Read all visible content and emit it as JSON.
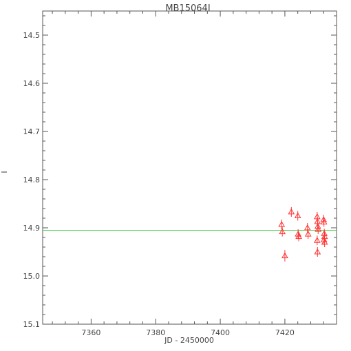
{
  "chart_data": {
    "type": "scatter",
    "title": "MB15064I",
    "xlabel": "JD - 2450000",
    "ylabel": "I",
    "xlim": [
      7345,
      7436
    ],
    "ylim": [
      15.1,
      14.45
    ],
    "y_inverted": true,
    "grid": false,
    "xticks": [
      7360,
      7380,
      7400,
      7420
    ],
    "xtick_labels": [
      "7360",
      "7380",
      "7400",
      "7420"
    ],
    "yticks": [
      14.5,
      14.6,
      14.7,
      14.8,
      14.9,
      15.0,
      15.1
    ],
    "ytick_labels": [
      "14.5",
      "14.6",
      "14.7",
      "14.8",
      "14.9",
      "15.0",
      "15.1"
    ],
    "reference_line": {
      "y": 14.905,
      "color": "#33cc33"
    },
    "series": [
      {
        "marker": "triangle",
        "color": "#ff3333",
        "points": [
          {
            "x": 7419.0,
            "y": 14.893,
            "err": 0.01
          },
          {
            "x": 7419.2,
            "y": 14.908,
            "err": 0.01
          },
          {
            "x": 7420.0,
            "y": 14.958,
            "err": 0.012
          },
          {
            "x": 7422.0,
            "y": 14.867,
            "err": 0.01
          },
          {
            "x": 7424.0,
            "y": 14.875,
            "err": 0.01
          },
          {
            "x": 7424.1,
            "y": 14.913,
            "err": 0.01
          },
          {
            "x": 7424.3,
            "y": 14.918,
            "err": 0.01
          },
          {
            "x": 7427.0,
            "y": 14.9,
            "err": 0.01
          },
          {
            "x": 7427.2,
            "y": 14.913,
            "err": 0.01
          },
          {
            "x": 7430.0,
            "y": 14.877,
            "err": 0.01
          },
          {
            "x": 7430.1,
            "y": 14.887,
            "err": 0.01
          },
          {
            "x": 7430.2,
            "y": 14.897,
            "err": 0.01
          },
          {
            "x": 7430.3,
            "y": 14.903,
            "err": 0.01
          },
          {
            "x": 7430.0,
            "y": 14.926,
            "err": 0.01
          },
          {
            "x": 7430.1,
            "y": 14.95,
            "err": 0.01
          },
          {
            "x": 7432.0,
            "y": 14.883,
            "err": 0.01
          },
          {
            "x": 7432.1,
            "y": 14.888,
            "err": 0.01
          },
          {
            "x": 7432.2,
            "y": 14.912,
            "err": 0.01
          },
          {
            "x": 7432.3,
            "y": 14.918,
            "err": 0.01
          },
          {
            "x": 7432.1,
            "y": 14.925,
            "err": 0.01
          },
          {
            "x": 7432.3,
            "y": 14.93,
            "err": 0.01
          }
        ]
      }
    ]
  }
}
